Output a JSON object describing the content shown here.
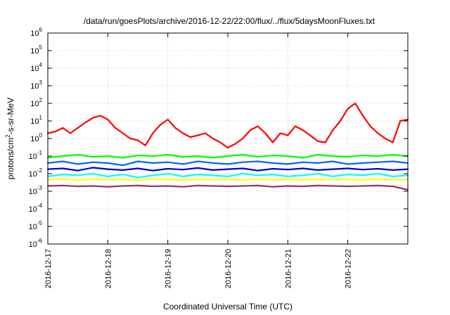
{
  "chart_data": {
    "type": "line",
    "title": "/data/run/goesPlots/archive/2016-12-22/22:00/flux/../flux/5daysMoonFluxes.txt",
    "xlabel": "Coordinated Universal Time (UTC)",
    "ylabel": {
      "prefix": "protons/cm",
      "sup": "2",
      "suffix": "-s-sr-MeV"
    },
    "y_scale": "log",
    "ylim": [
      1e-06,
      1000000.0
    ],
    "y_ticks": [
      {
        "base": "10",
        "exp": "-6"
      },
      {
        "base": "10",
        "exp": "-5"
      },
      {
        "base": "10",
        "exp": "-4"
      },
      {
        "base": "10",
        "exp": "-3"
      },
      {
        "base": "10",
        "exp": "-2"
      },
      {
        "base": "10",
        "exp": "-1"
      },
      {
        "base": "10",
        "exp": "0"
      },
      {
        "base": "10",
        "exp": "1"
      },
      {
        "base": "10",
        "exp": "2"
      },
      {
        "base": "10",
        "exp": "3"
      },
      {
        "base": "10",
        "exp": "4"
      },
      {
        "base": "10",
        "exp": "5"
      },
      {
        "base": "10",
        "exp": "6"
      }
    ],
    "xlim": [
      "2016-12-17T00:00",
      "2016-12-23T00:00"
    ],
    "x_ticks": [
      "2016-12-17",
      "2016-12-18",
      "2016-12-19",
      "2016-12-20",
      "2016-12-21",
      "2016-12-22"
    ],
    "grid": "dotted",
    "legend": "none",
    "series": [
      {
        "color": "#ff0000",
        "x": [
          "2016-12-17T00:00",
          "2016-12-17T03:00",
          "2016-12-17T06:00",
          "2016-12-17T09:00",
          "2016-12-17T12:00",
          "2016-12-17T15:00",
          "2016-12-17T18:00",
          "2016-12-17T21:00",
          "2016-12-18T00:00",
          "2016-12-18T03:00",
          "2016-12-18T06:00",
          "2016-12-18T09:00",
          "2016-12-18T12:00",
          "2016-12-18T15:00",
          "2016-12-18T18:00",
          "2016-12-18T21:00",
          "2016-12-19T00:00",
          "2016-12-19T03:00",
          "2016-12-19T06:00",
          "2016-12-19T09:00",
          "2016-12-19T12:00",
          "2016-12-19T15:00",
          "2016-12-19T18:00",
          "2016-12-19T21:00",
          "2016-12-20T00:00",
          "2016-12-20T03:00",
          "2016-12-20T06:00",
          "2016-12-20T09:00",
          "2016-12-20T12:00",
          "2016-12-20T15:00",
          "2016-12-20T18:00",
          "2016-12-20T21:00",
          "2016-12-21T00:00",
          "2016-12-21T03:00",
          "2016-12-21T06:00",
          "2016-12-21T09:00",
          "2016-12-21T12:00",
          "2016-12-21T15:00",
          "2016-12-21T18:00",
          "2016-12-21T21:00",
          "2016-12-22T00:00",
          "2016-12-22T03:00",
          "2016-12-22T06:00",
          "2016-12-22T09:00",
          "2016-12-22T12:00",
          "2016-12-22T15:00",
          "2016-12-22T18:00",
          "2016-12-22T21:00",
          "2016-12-23T00:00"
        ],
        "values": [
          2,
          2.5,
          4,
          2,
          4,
          8,
          15,
          20,
          12,
          4,
          2,
          1,
          0.8,
          0.4,
          2,
          6,
          12,
          4,
          2,
          1.2,
          1.5,
          2,
          1,
          0.6,
          0.3,
          0.5,
          1,
          3,
          5,
          2,
          0.6,
          2,
          1.5,
          5,
          3,
          1.5,
          0.7,
          0.6,
          3,
          10,
          50,
          100,
          20,
          5,
          2,
          1,
          0.6,
          10,
          12
        ]
      },
      {
        "color": "#00ff00",
        "x": [
          "2016-12-17T00:00",
          "2016-12-17T06:00",
          "2016-12-17T12:00",
          "2016-12-17T18:00",
          "2016-12-18T00:00",
          "2016-12-18T06:00",
          "2016-12-18T12:00",
          "2016-12-18T18:00",
          "2016-12-19T00:00",
          "2016-12-19T06:00",
          "2016-12-19T12:00",
          "2016-12-19T18:00",
          "2016-12-20T00:00",
          "2016-12-20T06:00",
          "2016-12-20T12:00",
          "2016-12-20T18:00",
          "2016-12-21T00:00",
          "2016-12-21T06:00",
          "2016-12-21T12:00",
          "2016-12-21T18:00",
          "2016-12-22T00:00",
          "2016-12-22T06:00",
          "2016-12-22T12:00",
          "2016-12-22T18:00",
          "2016-12-23T00:00"
        ],
        "values": [
          0.08,
          0.1,
          0.12,
          0.09,
          0.1,
          0.08,
          0.11,
          0.1,
          0.12,
          0.09,
          0.1,
          0.08,
          0.1,
          0.12,
          0.09,
          0.11,
          0.1,
          0.08,
          0.12,
          0.1,
          0.09,
          0.11,
          0.1,
          0.12,
          0.1
        ]
      },
      {
        "color": "#00ffff",
        "x": [
          "2016-12-17T00:00",
          "2016-12-17T06:00",
          "2016-12-17T12:00",
          "2016-12-17T18:00",
          "2016-12-18T00:00",
          "2016-12-18T06:00",
          "2016-12-18T12:00",
          "2016-12-18T18:00",
          "2016-12-19T00:00",
          "2016-12-19T06:00",
          "2016-12-19T12:00",
          "2016-12-19T18:00",
          "2016-12-20T00:00",
          "2016-12-20T06:00",
          "2016-12-20T12:00",
          "2016-12-20T18:00",
          "2016-12-21T00:00",
          "2016-12-21T06:00",
          "2016-12-21T12:00",
          "2016-12-21T18:00",
          "2016-12-22T00:00",
          "2016-12-22T06:00",
          "2016-12-22T12:00",
          "2016-12-22T18:00",
          "2016-12-23T00:00"
        ],
        "values": [
          0.007,
          0.009,
          0.008,
          0.01,
          0.007,
          0.009,
          0.006,
          0.008,
          0.01,
          0.007,
          0.009,
          0.008,
          0.007,
          0.01,
          0.008,
          0.009,
          0.007,
          0.008,
          0.01,
          0.007,
          0.009,
          0.008,
          0.01,
          0.007,
          0.008
        ]
      },
      {
        "color": "#0066ff",
        "x": [
          "2016-12-17T00:00",
          "2016-12-17T06:00",
          "2016-12-17T12:00",
          "2016-12-17T18:00",
          "2016-12-18T00:00",
          "2016-12-18T06:00",
          "2016-12-18T12:00",
          "2016-12-18T18:00",
          "2016-12-19T00:00",
          "2016-12-19T06:00",
          "2016-12-19T12:00",
          "2016-12-19T18:00",
          "2016-12-20T00:00",
          "2016-12-20T06:00",
          "2016-12-20T12:00",
          "2016-12-20T18:00",
          "2016-12-21T00:00",
          "2016-12-21T06:00",
          "2016-12-21T12:00",
          "2016-12-21T18:00",
          "2016-12-22T00:00",
          "2016-12-22T06:00",
          "2016-12-22T12:00",
          "2016-12-22T18:00",
          "2016-12-23T00:00"
        ],
        "values": [
          0.04,
          0.05,
          0.035,
          0.045,
          0.04,
          0.03,
          0.05,
          0.04,
          0.045,
          0.035,
          0.05,
          0.04,
          0.035,
          0.045,
          0.05,
          0.04,
          0.035,
          0.045,
          0.04,
          0.05,
          0.035,
          0.04,
          0.045,
          0.05,
          0.04
        ]
      },
      {
        "color": "#0000cc",
        "x": [
          "2016-12-17T00:00",
          "2016-12-17T06:00",
          "2016-12-17T12:00",
          "2016-12-17T18:00",
          "2016-12-18T00:00",
          "2016-12-18T06:00",
          "2016-12-18T12:00",
          "2016-12-18T18:00",
          "2016-12-19T00:00",
          "2016-12-19T06:00",
          "2016-12-19T12:00",
          "2016-12-19T18:00",
          "2016-12-20T00:00",
          "2016-12-20T06:00",
          "2016-12-20T12:00",
          "2016-12-20T18:00",
          "2016-12-21T00:00",
          "2016-12-21T06:00",
          "2016-12-21T12:00",
          "2016-12-21T18:00",
          "2016-12-22T00:00",
          "2016-12-22T06:00",
          "2016-12-22T12:00",
          "2016-12-22T18:00",
          "2016-12-23T00:00"
        ],
        "values": [
          0.018,
          0.02,
          0.015,
          0.022,
          0.018,
          0.016,
          0.02,
          0.015,
          0.019,
          0.017,
          0.021,
          0.016,
          0.018,
          0.02,
          0.015,
          0.019,
          0.017,
          0.02,
          0.016,
          0.018,
          0.02,
          0.017,
          0.019,
          0.016,
          0.018
        ]
      },
      {
        "color": "#ffff00",
        "x": [
          "2016-12-17T00:00",
          "2016-12-17T06:00",
          "2016-12-17T12:00",
          "2016-12-17T18:00",
          "2016-12-18T00:00",
          "2016-12-18T06:00",
          "2016-12-18T12:00",
          "2016-12-18T18:00",
          "2016-12-19T00:00",
          "2016-12-19T06:00",
          "2016-12-19T12:00",
          "2016-12-19T18:00",
          "2016-12-20T00:00",
          "2016-12-20T06:00",
          "2016-12-20T12:00",
          "2016-12-20T18:00",
          "2016-12-21T00:00",
          "2016-12-21T06:00",
          "2016-12-21T12:00",
          "2016-12-21T18:00",
          "2016-12-22T00:00",
          "2016-12-22T06:00",
          "2016-12-22T12:00",
          "2016-12-22T18:00",
          "2016-12-23T00:00"
        ],
        "values": [
          0.0045,
          0.005,
          0.0042,
          0.0048,
          0.0045,
          0.0047,
          0.0043,
          0.005,
          0.0046,
          0.0044,
          0.0048,
          0.0045,
          0.0047,
          0.0043,
          0.0049,
          0.0045,
          0.0046,
          0.0044,
          0.0048,
          0.0045,
          0.0047,
          0.0043,
          0.0049,
          0.0045,
          0.0046
        ]
      },
      {
        "color": "#993366",
        "x": [
          "2016-12-17T00:00",
          "2016-12-17T06:00",
          "2016-12-17T12:00",
          "2016-12-17T18:00",
          "2016-12-18T00:00",
          "2016-12-18T06:00",
          "2016-12-18T12:00",
          "2016-12-18T18:00",
          "2016-12-19T00:00",
          "2016-12-19T06:00",
          "2016-12-19T12:00",
          "2016-12-19T18:00",
          "2016-12-20T00:00",
          "2016-12-20T06:00",
          "2016-12-20T12:00",
          "2016-12-20T18:00",
          "2016-12-21T00:00",
          "2016-12-21T06:00",
          "2016-12-21T12:00",
          "2016-12-21T18:00",
          "2016-12-22T00:00",
          "2016-12-22T06:00",
          "2016-12-22T12:00",
          "2016-12-22T18:00",
          "2016-12-23T00:00"
        ],
        "values": [
          0.002,
          0.0021,
          0.0019,
          0.002,
          0.0018,
          0.002,
          0.0021,
          0.0019,
          0.002,
          0.0018,
          0.0021,
          0.002,
          0.0019,
          0.002,
          0.0021,
          0.0018,
          0.002,
          0.0019,
          0.0021,
          0.002,
          0.0019,
          0.002,
          0.0021,
          0.0019,
          0.0012
        ]
      }
    ]
  }
}
